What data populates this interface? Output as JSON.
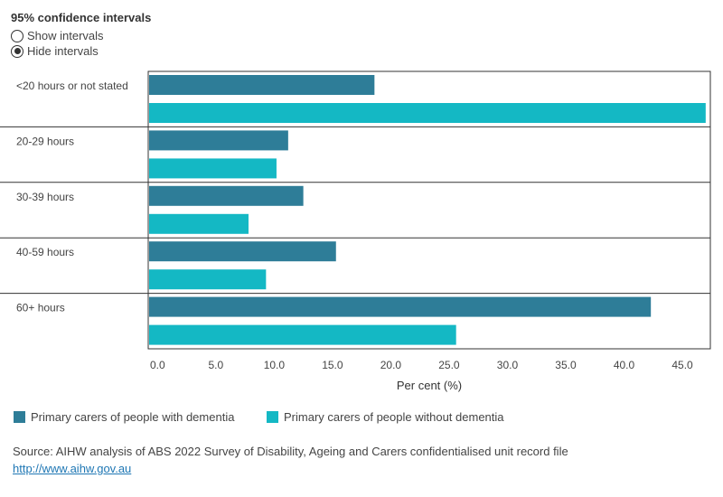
{
  "controls": {
    "title": "95% confidence intervals",
    "options": [
      {
        "label": "Show intervals",
        "checked": false
      },
      {
        "label": "Hide intervals",
        "checked": true
      }
    ]
  },
  "colors": {
    "with_dementia": "#2e7d98",
    "without_dementia": "#14b8c4",
    "grid": "#333333"
  },
  "chart_data": {
    "type": "bar",
    "orientation": "horizontal",
    "categories": [
      "<20 hours or not stated",
      "20-29 hours",
      "30-39 hours",
      "40-59 hours",
      "60+ hours"
    ],
    "series": [
      {
        "name": "Primary carers of people with dementia",
        "values": [
          18.6,
          11.2,
          12.5,
          15.3,
          42.3
        ]
      },
      {
        "name": "Primary carers of people without dementia",
        "values": [
          47.0,
          10.2,
          7.8,
          9.3,
          25.6
        ]
      }
    ],
    "xlabel": "Per cent (%)",
    "xlim": [
      -0.8,
      47.4
    ],
    "ticks": [
      "0.0",
      "5.0",
      "10.0",
      "15.0",
      "20.0",
      "25.0",
      "30.0",
      "35.0",
      "40.0",
      "45.0"
    ],
    "legend": "bottom"
  },
  "footer": {
    "source": "Source: AIHW analysis of ABS 2022 Survey of Disability, Ageing and Carers confidentialised unit record file",
    "link": "http://www.aihw.gov.au"
  }
}
